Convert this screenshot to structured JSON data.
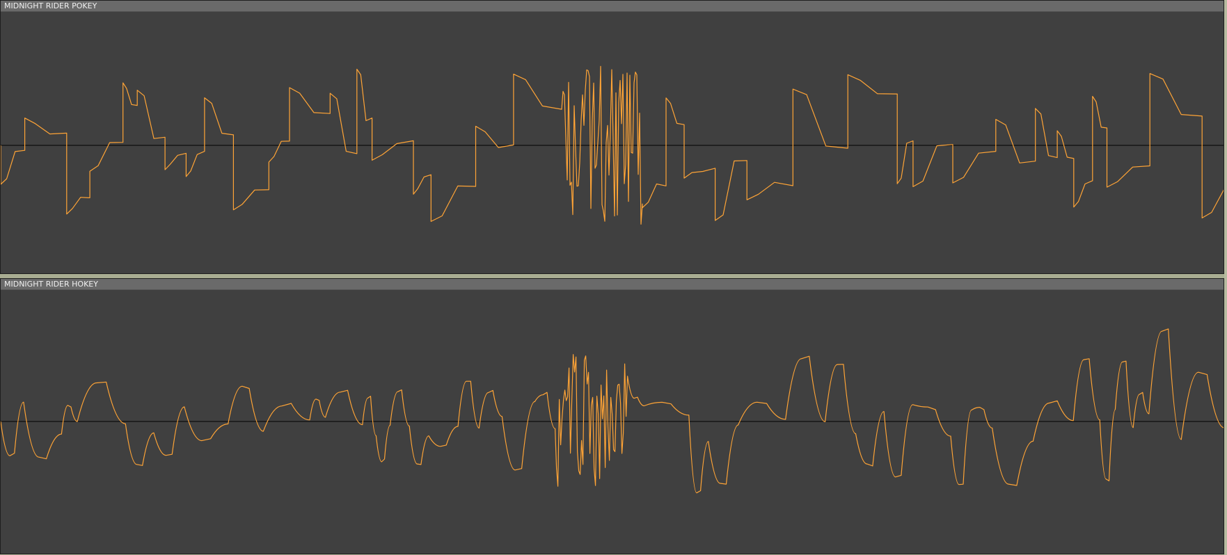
{
  "tracks": [
    {
      "id": "pokey",
      "title": "MIDNIGHT RIDER POKEY"
    },
    {
      "id": "hokey",
      "title": "MIDNIGHT RIDER HOKEY"
    }
  ],
  "colors": {
    "waveform": "#ffa436",
    "track_background": "#404040",
    "track_header": "#6a6a6a",
    "baseline": "#000000",
    "window_background": "#a9ad92"
  }
}
